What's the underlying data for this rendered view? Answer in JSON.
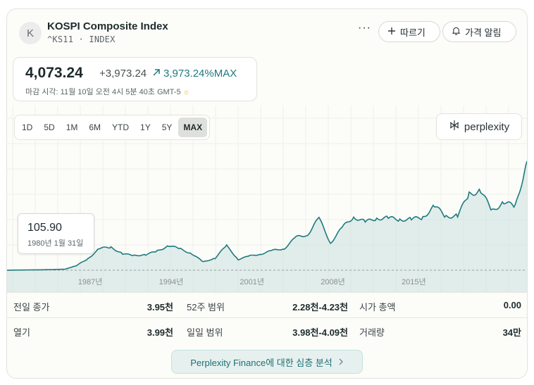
{
  "header": {
    "avatar_letter": "K",
    "title": "KOSPI Composite Index",
    "subtitle": "^KS11 · INDEX",
    "more_label": "···",
    "follow_label": "따르기",
    "alert_label": "가격 알림"
  },
  "quote": {
    "price": "4,073.24",
    "change": "+3,973.24",
    "change_pct": "3,973.24%MAX",
    "close_time": "마감 시각: 11월 10일 오전 4시 5분 40초 GMT-5"
  },
  "ranges": [
    "1D",
    "5D",
    "1M",
    "6M",
    "YTD",
    "1Y",
    "5Y",
    "MAX"
  ],
  "selected_range": "MAX",
  "brand": "perplexity",
  "tooltip": {
    "value": "105.90",
    "date": "1980년 1월 31일"
  },
  "chart_data": {
    "type": "area",
    "x": [
      1980,
      1983,
      1985,
      1986,
      1987,
      1988,
      1989,
      1990,
      1991,
      1992,
      1993,
      1994,
      1995,
      1996,
      1997,
      1998,
      1999,
      2000,
      2001,
      2002,
      2003,
      2004,
      2005,
      2006,
      2007,
      2008,
      2009,
      2010,
      2011,
      2012,
      2013,
      2014,
      2015,
      2016,
      2017,
      2018,
      2019,
      2020,
      2021,
      2022,
      2023,
      2024,
      2025
    ],
    "values": [
      106,
      120,
      140,
      270,
      520,
      900,
      940,
      700,
      640,
      670,
      800,
      1000,
      880,
      700,
      400,
      550,
      1000,
      500,
      620,
      700,
      820,
      900,
      1300,
      1400,
      2000,
      1100,
      1650,
      2050,
      1850,
      2000,
      2000,
      1950,
      1960,
      2020,
      2450,
      2050,
      2100,
      2870,
      3000,
      2250,
      2600,
      2400,
      4073
    ],
    "x_ticks": [
      "1987년",
      "1994년",
      "2001년",
      "2008년",
      "2015년"
    ],
    "ylim": [
      0,
      4300
    ],
    "colors": {
      "line": "#1f7a7f",
      "fill": "#cfe3e0"
    }
  },
  "stats": [
    {
      "label": "전일 종가",
      "value": "3.95천"
    },
    {
      "label": "52주 범위",
      "value": "2.28천-4.23천"
    },
    {
      "label": "시가 총액",
      "value": "0.00"
    },
    {
      "label": "열기",
      "value": "3.99천"
    },
    {
      "label": "일일 범위",
      "value": "3.98천-4.09천"
    },
    {
      "label": "거래량",
      "value": "34만"
    }
  ],
  "cta_label": "Perplexity Finance에 대한 심층 분석"
}
